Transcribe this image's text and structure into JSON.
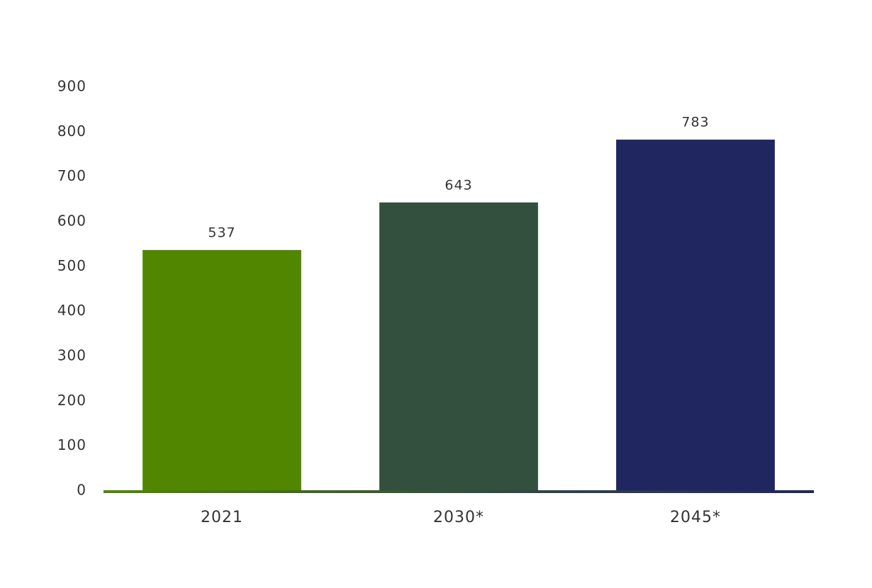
{
  "chart_data": {
    "type": "bar",
    "categories": [
      "2021",
      "2030*",
      "2045*"
    ],
    "values": [
      537,
      643,
      783
    ],
    "colors": [
      "#518700",
      "#334f3d",
      "#1f2660"
    ],
    "ylim": [
      0,
      900
    ],
    "yticks": [
      0,
      100,
      200,
      300,
      400,
      500,
      600,
      700,
      800,
      900
    ],
    "grid": false,
    "data_labels": true
  }
}
